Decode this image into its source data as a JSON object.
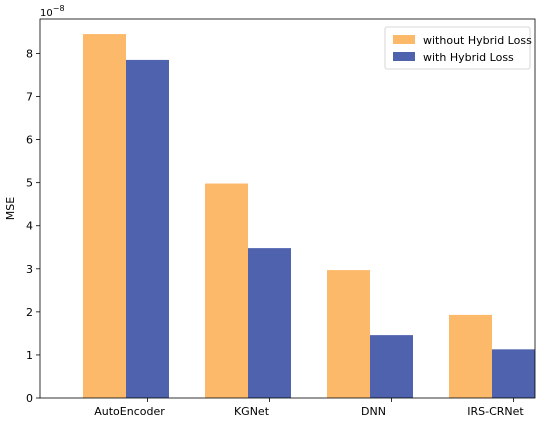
{
  "chart_data": {
    "type": "bar",
    "title": "",
    "xlabel": "",
    "ylabel": "MSE",
    "y_scale_label_base": "10",
    "y_scale_label_exp": "−8",
    "categories": [
      "AutoEncoder",
      "KGNet",
      "DNN",
      "IRS-CRNet"
    ],
    "series": [
      {
        "name": "without Hybrid Loss",
        "values": [
          8.45,
          4.98,
          2.97,
          1.93
        ],
        "color": "#FDB96A"
      },
      {
        "name": "with Hybrid Loss",
        "values": [
          7.85,
          3.48,
          1.46,
          1.13
        ],
        "color": "#4E62AE"
      }
    ],
    "ylim": [
      0,
      8.8
    ],
    "yticks": [
      0,
      1,
      2,
      3,
      4,
      5,
      6,
      7,
      8
    ],
    "legend_position": "top-right",
    "grid": false
  }
}
